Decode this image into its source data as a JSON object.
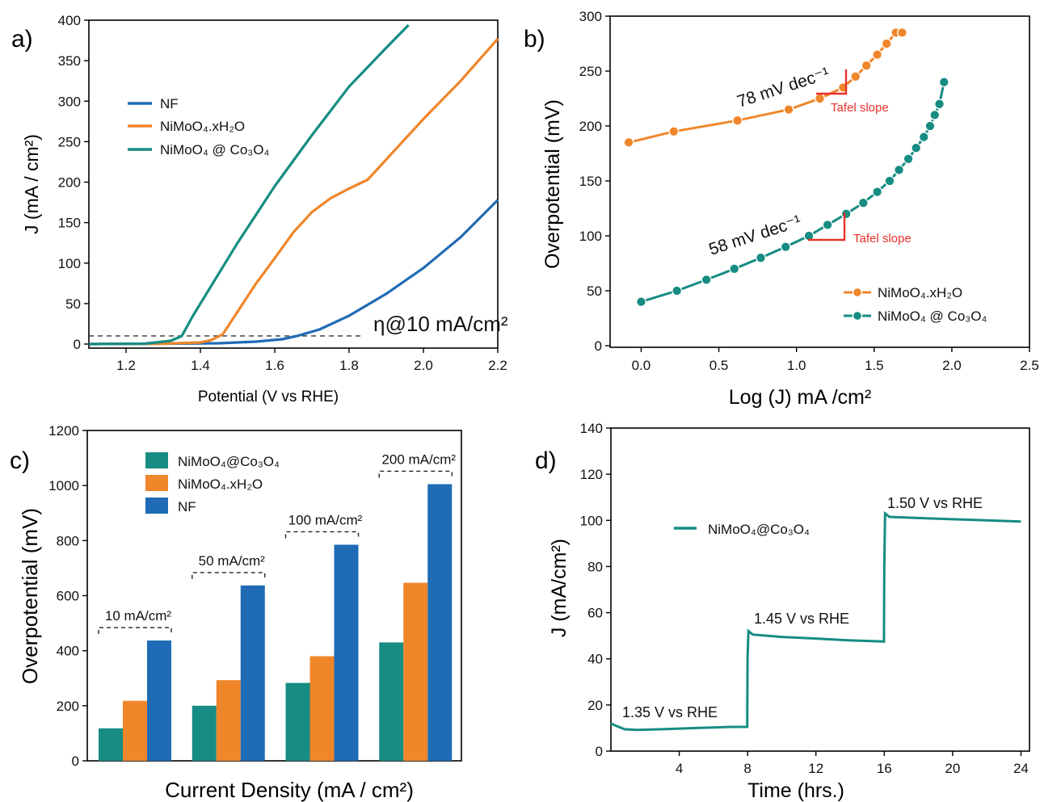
{
  "colors": {
    "nf": "#1f6bb5",
    "nimoo_xh2o": "#f0862a",
    "nimoo_co3o4": "#168c82",
    "tafel": "#e8312a"
  },
  "chart_data": [
    {
      "panel": "a)",
      "type": "line",
      "xlabel": "Potential (V vs RHE)",
      "ylabel": "J (mA / cm²)",
      "xlim": [
        1.1,
        2.2
      ],
      "ylim": [
        0,
        400
      ],
      "xticks": [
        "1.2",
        "1.4",
        "1.6",
        "1.8",
        "2.0",
        "2.2"
      ],
      "yticks": [
        "0",
        "50",
        "100",
        "150",
        "200",
        "250",
        "300",
        "350",
        "400"
      ],
      "legend": [
        "NF",
        "NiMoO₄.xH₂O",
        "NiMoO₄ @ Co₃O₄"
      ],
      "annotation": "η@10 mA/cm²",
      "reference_line_y": 10,
      "series": [
        {
          "name": "NF",
          "color": "#1f6bb5",
          "x": [
            1.1,
            1.3,
            1.45,
            1.55,
            1.62,
            1.66,
            1.72,
            1.8,
            1.9,
            2.0,
            2.1,
            2.2
          ],
          "y": [
            0,
            0.5,
            1,
            3,
            6,
            10,
            18,
            35,
            62,
            94,
            132,
            178
          ]
        },
        {
          "name": "NiMoO₄.xH₂O",
          "color": "#f0862a",
          "x": [
            1.1,
            1.3,
            1.4,
            1.43,
            1.46,
            1.5,
            1.55,
            1.6,
            1.65,
            1.7,
            1.75,
            1.8,
            1.85,
            1.9,
            2.0,
            2.1,
            2.2
          ],
          "y": [
            0,
            0.5,
            2,
            5,
            12,
            40,
            75,
            106,
            138,
            163,
            180,
            192,
            203,
            228,
            278,
            325,
            377
          ]
        },
        {
          "name": "NiMoO₄ @ Co₃O₄",
          "color": "#168c82",
          "x": [
            1.1,
            1.25,
            1.32,
            1.35,
            1.38,
            1.42,
            1.5,
            1.6,
            1.7,
            1.8,
            1.9,
            1.96
          ],
          "y": [
            0,
            0.5,
            4,
            10,
            35,
            65,
            125,
            195,
            258,
            318,
            366,
            394
          ]
        }
      ]
    },
    {
      "panel": "b)",
      "type": "line",
      "xlabel": "Log (J) mA /cm²",
      "ylabel": "Overpotential (mV)",
      "xlim": [
        -0.2,
        2.5
      ],
      "ylim": [
        0,
        300
      ],
      "xticks": [
        "0.0",
        "0.5",
        "1.0",
        "1.5",
        "2.0",
        "2.5"
      ],
      "yticks": [
        "0",
        "50",
        "100",
        "150",
        "200",
        "250",
        "300"
      ],
      "legend": [
        "NiMoO₄.xH₂O",
        "NiMoO₄ @ Co₃O₄"
      ],
      "annotations": [
        "78 mV dec⁻¹",
        "58 mV dec⁻¹",
        "Tafel slope",
        "Tafel slope"
      ],
      "series": [
        {
          "name": "NiMoO₄.xH₂O",
          "color": "#f0862a",
          "x": [
            -0.08,
            0.21,
            0.62,
            0.95,
            1.15,
            1.3,
            1.38,
            1.45,
            1.52,
            1.58,
            1.64,
            1.68
          ],
          "y": [
            185,
            195,
            205,
            215,
            225,
            235,
            245,
            255,
            265,
            275,
            285,
            285
          ]
        },
        {
          "name": "NiMoO₄ @ Co₃O₄",
          "color": "#168c82",
          "x": [
            0.0,
            0.23,
            0.42,
            0.6,
            0.77,
            0.93,
            1.08,
            1.2,
            1.32,
            1.43,
            1.52,
            1.6,
            1.66,
            1.72,
            1.77,
            1.82,
            1.86,
            1.89,
            1.92,
            1.95
          ],
          "y": [
            40,
            50,
            60,
            70,
            80,
            90,
            100,
            110,
            120,
            130,
            140,
            150,
            160,
            170,
            180,
            190,
            200,
            210,
            220,
            240
          ]
        }
      ]
    },
    {
      "panel": "c)",
      "type": "bar",
      "xlabel": "Current Density (mA / cm²)",
      "ylabel": "Overpotential (mV)",
      "ylim": [
        0,
        1200
      ],
      "yticks": [
        "0",
        "200",
        "400",
        "600",
        "800",
        "1000",
        "1200"
      ],
      "categories": [
        "10 mA/cm²",
        "50 mA/cm²",
        "100 mA/cm²",
        "200 mA/cm²"
      ],
      "series": [
        {
          "name": "NiMoO₄@Co₃O₄",
          "color": "#168c82",
          "values": [
            118,
            200,
            283,
            430
          ]
        },
        {
          "name": "NiMoO₄.xH₂O",
          "color": "#f0862a",
          "values": [
            218,
            293,
            380,
            647
          ]
        },
        {
          "name": "NF",
          "color": "#1f6bb5",
          "values": [
            437,
            637,
            785,
            1005
          ]
        }
      ]
    },
    {
      "panel": "d)",
      "type": "line",
      "xlabel": "Time (hrs.)",
      "ylabel": "J (mA/cm²)",
      "xlim": [
        0,
        24.5
      ],
      "ylim": [
        0,
        140
      ],
      "xticks": [
        "4",
        "8",
        "12",
        "16",
        "20",
        "24"
      ],
      "yticks": [
        "0",
        "20",
        "40",
        "60",
        "80",
        "100",
        "120",
        "140"
      ],
      "legend": [
        "NiMoO₄@Co₃O₄"
      ],
      "annotations": [
        "1.35 V vs RHE",
        "1.45 V vs RHE",
        "1.50 V vs RHE"
      ],
      "series": [
        {
          "name": "NiMoO₄@Co₃O₄",
          "color": "#168c82",
          "x": [
            0,
            0.3,
            0.8,
            1.5,
            3,
            5,
            7,
            7.98,
            8,
            8.05,
            8.3,
            10,
            12,
            14,
            15.98,
            16,
            16.05,
            16.3,
            18,
            20,
            22,
            24
          ],
          "y": [
            12,
            11,
            9.5,
            9.2,
            9.5,
            10,
            10.5,
            10.5,
            40,
            52,
            50.5,
            49.5,
            48.8,
            48,
            47.5,
            80,
            103,
            101.5,
            101,
            100.5,
            100,
            99.5
          ]
        }
      ]
    }
  ]
}
